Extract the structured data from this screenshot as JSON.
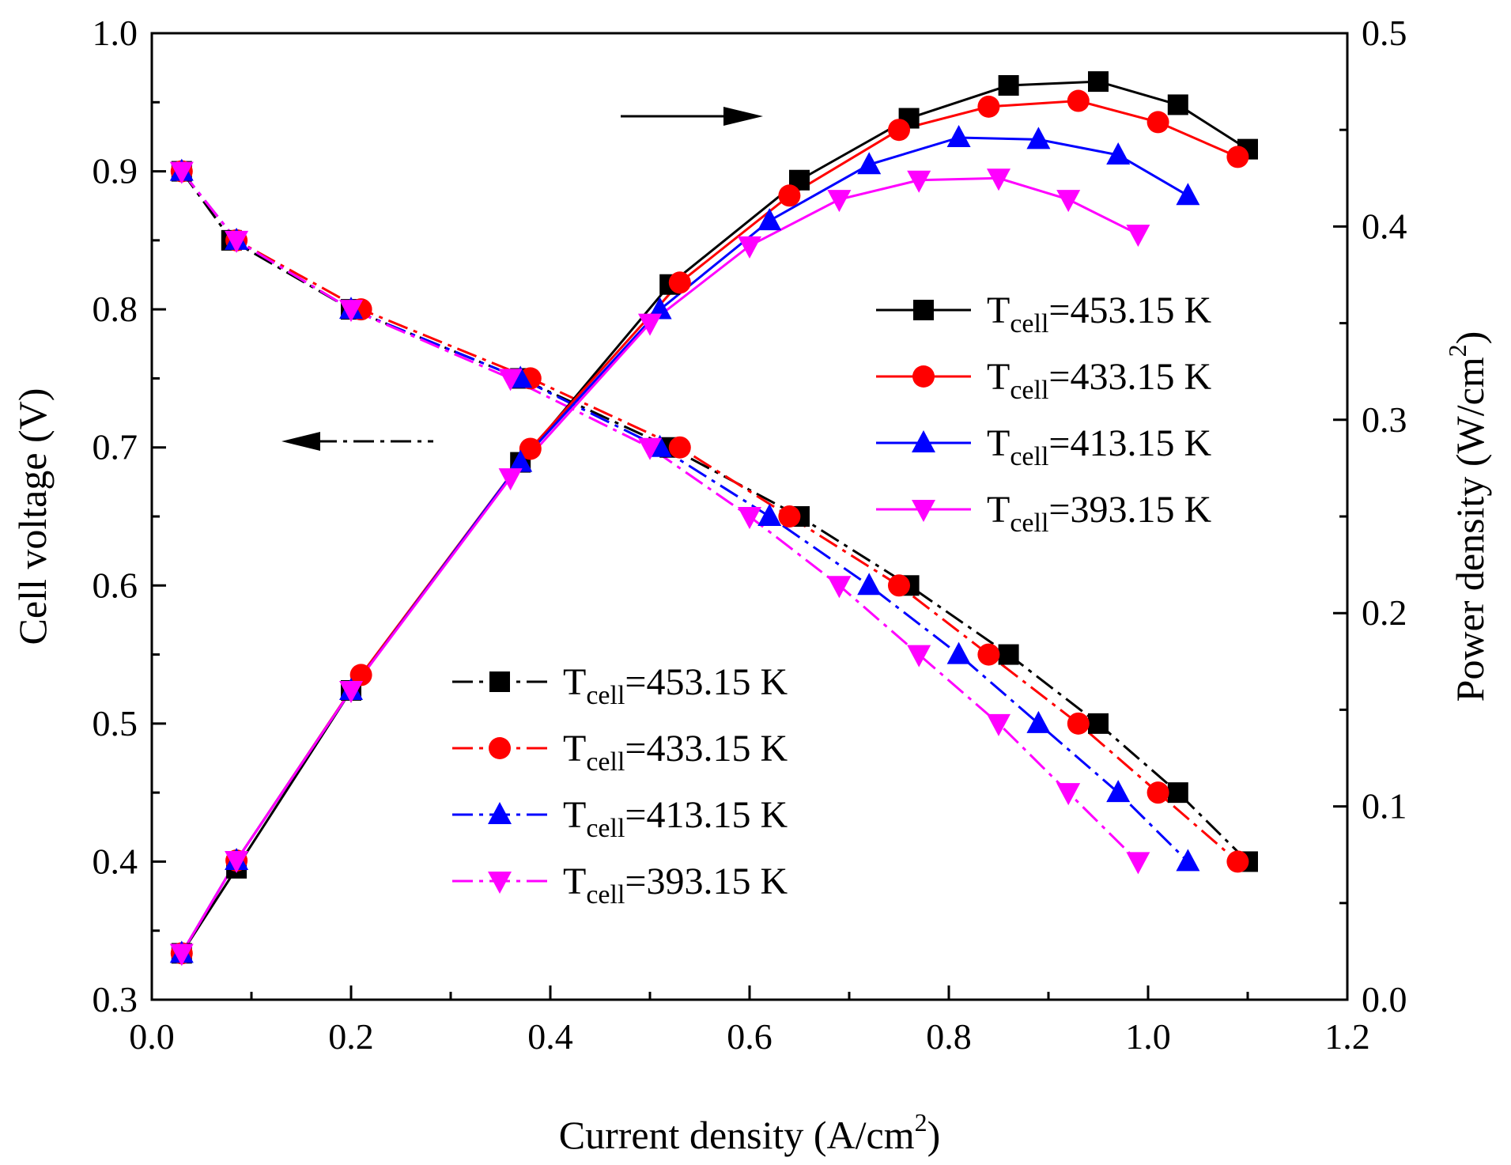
{
  "chart_data": {
    "type": "line",
    "xlabel": "Current density (A/cm",
    "xlabel_sup": "2",
    "xlabel_end": ")",
    "ylabel_left": "Cell voltage (V)",
    "ylabel_right": "Power density (W/cm",
    "ylabel_right_sup": "2",
    "ylabel_right_end": ")",
    "xlim": [
      0.0,
      1.2
    ],
    "ylim_left": [
      0.3,
      1.0
    ],
    "ylim_right": [
      0.0,
      0.5
    ],
    "x_ticks": [
      "0.0",
      "0.2",
      "0.4",
      "0.6",
      "0.8",
      "1.0",
      "1.2"
    ],
    "y_left_ticks": [
      "0.3",
      "0.4",
      "0.5",
      "0.6",
      "0.7",
      "0.8",
      "0.9",
      "1.0"
    ],
    "y_right_ticks": [
      "0.0",
      "0.1",
      "0.2",
      "0.3",
      "0.4",
      "0.5"
    ],
    "legend_power": [
      {
        "prefix": "T",
        "sub": "cell",
        "suffix": "=453.15 K"
      },
      {
        "prefix": "T",
        "sub": "cell",
        "suffix": "=433.15 K"
      },
      {
        "prefix": "T",
        "sub": "cell",
        "suffix": "=413.15 K"
      },
      {
        "prefix": "T",
        "sub": "cell",
        "suffix": "=393.15 K"
      }
    ],
    "legend_voltage": [
      {
        "prefix": "T",
        "sub": "cell",
        "suffix": "=453.15 K"
      },
      {
        "prefix": "T",
        "sub": "cell",
        "suffix": "=433.15 K"
      },
      {
        "prefix": "T",
        "sub": "cell",
        "suffix": "=413.15 K"
      },
      {
        "prefix": "T",
        "sub": "cell",
        "suffix": "=393.15 K"
      }
    ],
    "series_styles": [
      {
        "color": "#000000",
        "marker": "square"
      },
      {
        "color": "#ff0000",
        "marker": "circle"
      },
      {
        "color": "#0000ff",
        "marker": "triangle-up"
      },
      {
        "color": "#ff00ff",
        "marker": "triangle-down"
      }
    ],
    "voltage_series": [
      {
        "x": [
          0.03,
          0.08,
          0.2,
          0.37,
          0.52,
          0.65,
          0.76,
          0.86,
          0.95,
          1.03,
          1.1
        ],
        "y": [
          0.9,
          0.85,
          0.8,
          0.75,
          0.7,
          0.65,
          0.6,
          0.55,
          0.5,
          0.45,
          0.4
        ]
      },
      {
        "x": [
          0.03,
          0.085,
          0.21,
          0.38,
          0.53,
          0.64,
          0.75,
          0.84,
          0.93,
          1.01,
          1.09
        ],
        "y": [
          0.9,
          0.85,
          0.8,
          0.75,
          0.7,
          0.65,
          0.6,
          0.55,
          0.5,
          0.45,
          0.4
        ]
      },
      {
        "x": [
          0.03,
          0.085,
          0.2,
          0.37,
          0.51,
          0.62,
          0.72,
          0.81,
          0.89,
          0.97,
          1.04
        ],
        "y": [
          0.9,
          0.85,
          0.8,
          0.75,
          0.7,
          0.65,
          0.6,
          0.55,
          0.5,
          0.45,
          0.4
        ]
      },
      {
        "x": [
          0.03,
          0.085,
          0.2,
          0.36,
          0.5,
          0.6,
          0.69,
          0.77,
          0.85,
          0.92,
          0.99
        ],
        "y": [
          0.9,
          0.85,
          0.8,
          0.75,
          0.7,
          0.65,
          0.6,
          0.55,
          0.5,
          0.45,
          0.4
        ]
      }
    ],
    "power_series": [
      {
        "x": [
          0.03,
          0.085,
          0.2,
          0.37,
          0.52,
          0.65,
          0.76,
          0.86,
          0.95,
          1.03,
          1.1
        ],
        "y": [
          0.024,
          0.068,
          0.16,
          0.278,
          0.37,
          0.424,
          0.456,
          0.473,
          0.475,
          0.463,
          0.44
        ]
      },
      {
        "x": [
          0.03,
          0.085,
          0.21,
          0.38,
          0.53,
          0.64,
          0.75,
          0.84,
          0.93,
          1.01,
          1.09
        ],
        "y": [
          0.024,
          0.072,
          0.168,
          0.285,
          0.371,
          0.416,
          0.45,
          0.462,
          0.465,
          0.454,
          0.436
        ]
      },
      {
        "x": [
          0.03,
          0.085,
          0.2,
          0.37,
          0.51,
          0.62,
          0.72,
          0.81,
          0.89,
          0.97,
          1.04
        ],
        "y": [
          0.024,
          0.072,
          0.16,
          0.278,
          0.357,
          0.403,
          0.432,
          0.446,
          0.445,
          0.437,
          0.416
        ]
      },
      {
        "x": [
          0.03,
          0.085,
          0.2,
          0.36,
          0.5,
          0.6,
          0.69,
          0.77,
          0.85,
          0.92,
          0.99
        ],
        "y": [
          0.024,
          0.072,
          0.16,
          0.27,
          0.35,
          0.39,
          0.414,
          0.424,
          0.425,
          0.414,
          0.396
        ]
      }
    ],
    "annotations": [
      {
        "type": "arrow",
        "direction": "right",
        "style": "solid",
        "refers_to": "power density axis"
      },
      {
        "type": "arrow",
        "direction": "left",
        "style": "dash-dot",
        "refers_to": "cell voltage axis"
      }
    ],
    "grid": false
  }
}
